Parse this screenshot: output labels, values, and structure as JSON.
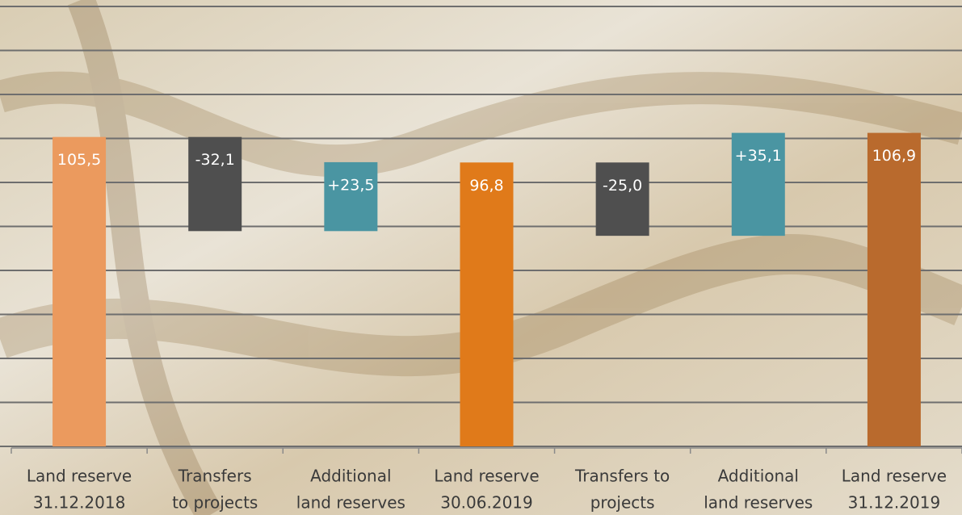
{
  "chart_data": {
    "type": "waterfall",
    "categories": [
      [
        "Land reserve",
        "31.12.2018"
      ],
      [
        "Transfers",
        "to projects"
      ],
      [
        "Additional",
        "land reserves"
      ],
      [
        "Land reserve",
        "30.06.2019"
      ],
      [
        "Transfers to",
        "projects"
      ],
      [
        "Additional",
        "land reserves"
      ],
      [
        "Land reserve",
        "31.12.2019"
      ]
    ],
    "values": [
      105.5,
      -32.1,
      23.5,
      96.8,
      -25.0,
      35.1,
      106.9
    ],
    "value_labels": [
      "105,5",
      "-32,1",
      "+23,5",
      "96,8",
      "-25,0",
      "+35,1",
      "106,9"
    ],
    "is_total": [
      true,
      false,
      false,
      true,
      false,
      false,
      true
    ],
    "colors": [
      "#eb9a5e",
      "#4f4f4f",
      "#4a95a2",
      "#e07a1a",
      "#4f4f4f",
      "#4a95a2",
      "#b96a2d"
    ],
    "ylim": [
      0,
      150
    ],
    "yticks": [
      0,
      15,
      30,
      45,
      60,
      75,
      90,
      105,
      120,
      135,
      150
    ],
    "grid": true
  }
}
